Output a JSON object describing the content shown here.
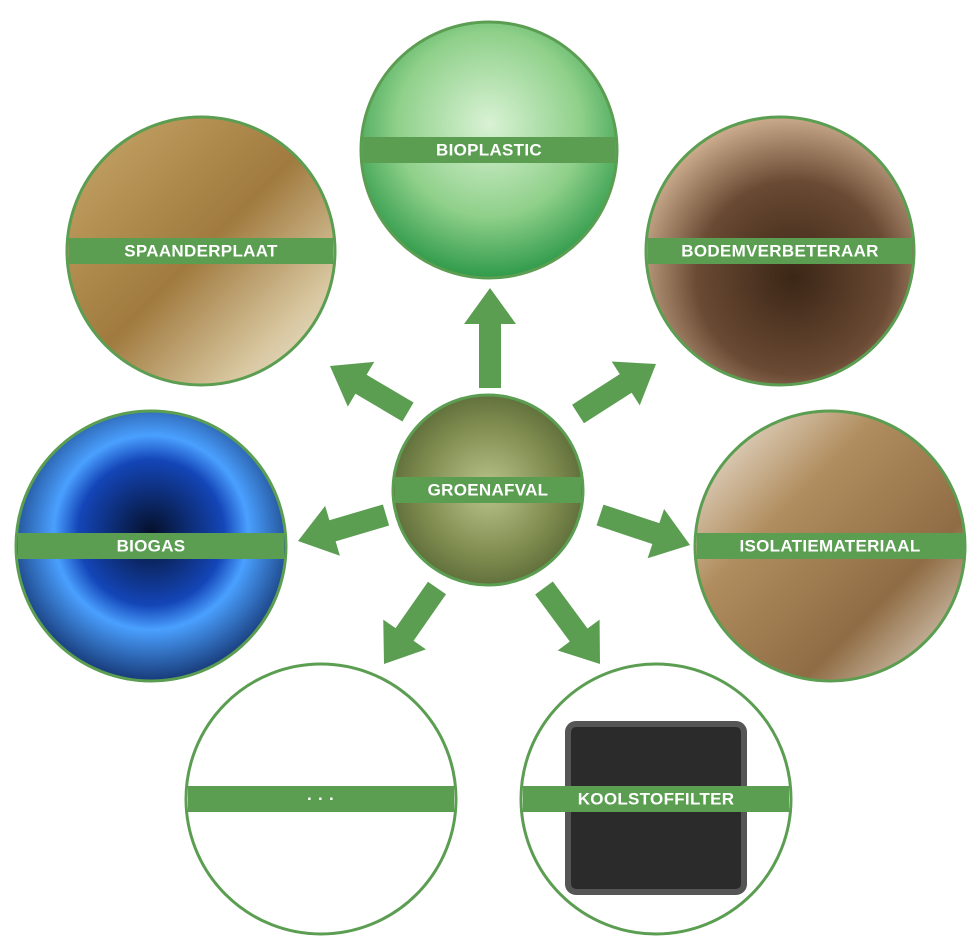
{
  "center": {
    "label": "GROENAFVAL"
  },
  "nodes": [
    {
      "label": "BIOPLASTIC"
    },
    {
      "label": "SPAANDERPLAAT"
    },
    {
      "label": "BODEMVERBETERAAR"
    },
    {
      "label": "BIOGAS"
    },
    {
      "label": "ISOLATIEMATERIAAL"
    },
    {
      "label": "· · ·"
    },
    {
      "label": "KOOLSTOFFILTER"
    }
  ]
}
